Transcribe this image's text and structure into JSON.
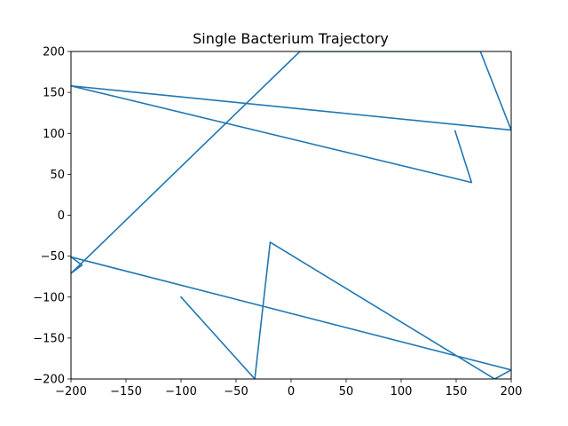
{
  "chart_data": {
    "type": "line",
    "title": "Single Bacterium Trajectory",
    "xlabel": "",
    "ylabel": "",
    "xlim": [
      -200,
      200
    ],
    "ylim": [
      -200,
      200
    ],
    "xticks": [
      -200,
      -150,
      -100,
      -50,
      0,
      50,
      100,
      150,
      200
    ],
    "yticks": [
      -200,
      -150,
      -100,
      -50,
      0,
      50,
      100,
      150,
      200
    ],
    "xtick_labels": [
      "−200",
      "−150",
      "−100",
      "−50",
      "0",
      "50",
      "100",
      "150",
      "200"
    ],
    "ytick_labels": [
      "−200",
      "−150",
      "−100",
      "−50",
      "0",
      "50",
      "100",
      "150",
      "200"
    ],
    "grid": false,
    "legend": "none",
    "series": [
      {
        "color": "#1f77b4",
        "x": [
          -100,
          -33,
          -19,
          185,
          200,
          -200,
          -190,
          -200,
          8,
          172,
          200,
          -200,
          164,
          149
        ],
        "y": [
          -100,
          -200,
          -33,
          -200,
          -189,
          -51,
          -61,
          -71,
          200,
          200,
          104,
          158,
          40,
          103
        ]
      }
    ]
  }
}
